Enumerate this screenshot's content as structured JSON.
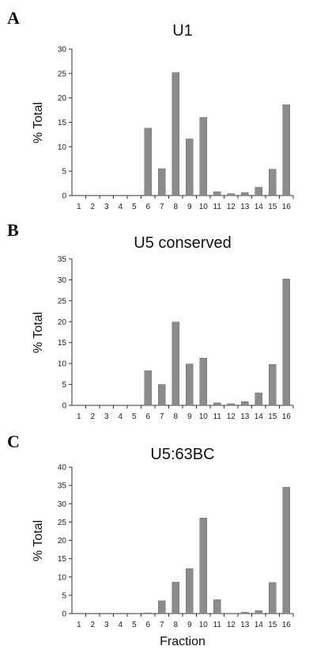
{
  "chart_data": [
    {
      "type": "bar",
      "panel": "A",
      "title": "U1",
      "ylabel": "% Total",
      "xlabel": "",
      "categories": [
        "1",
        "2",
        "3",
        "4",
        "5",
        "6",
        "7",
        "8",
        "9",
        "10",
        "11",
        "12",
        "13",
        "14",
        "15",
        "16"
      ],
      "values": [
        0,
        0,
        0,
        0,
        0,
        13.8,
        5.5,
        25.2,
        11.6,
        16.0,
        0.8,
        0.4,
        0.6,
        1.7,
        5.4,
        18.6
      ],
      "ylim": [
        0,
        30
      ],
      "yticks": [
        0,
        5,
        10,
        15,
        20,
        25,
        30
      ]
    },
    {
      "type": "bar",
      "panel": "B",
      "title": "U5 conserved",
      "ylabel": "% Total",
      "xlabel": "",
      "categories": [
        "1",
        "2",
        "3",
        "4",
        "5",
        "6",
        "7",
        "8",
        "9",
        "10",
        "11",
        "12",
        "13",
        "14",
        "15",
        "16"
      ],
      "values": [
        0,
        0,
        0,
        0,
        0,
        8.3,
        5.0,
        19.9,
        9.9,
        11.3,
        0.6,
        0.4,
        0.9,
        3.0,
        9.8,
        30.2
      ],
      "ylim": [
        0,
        35
      ],
      "yticks": [
        0,
        5,
        10,
        15,
        20,
        25,
        30,
        35
      ]
    },
    {
      "type": "bar",
      "panel": "C",
      "title": "U5:63BC",
      "ylabel": "% Total",
      "xlabel": "Fraction",
      "categories": [
        "1",
        "2",
        "3",
        "4",
        "5",
        "6",
        "7",
        "8",
        "9",
        "10",
        "11",
        "12",
        "13",
        "14",
        "15",
        "16"
      ],
      "values": [
        0,
        0,
        0,
        0,
        0,
        0.2,
        3.5,
        8.6,
        12.3,
        26.1,
        3.8,
        0,
        0.4,
        0.8,
        8.5,
        34.5
      ],
      "ylim": [
        0,
        40
      ],
      "yticks": [
        0,
        5,
        10,
        15,
        20,
        25,
        30,
        35,
        40
      ]
    }
  ]
}
